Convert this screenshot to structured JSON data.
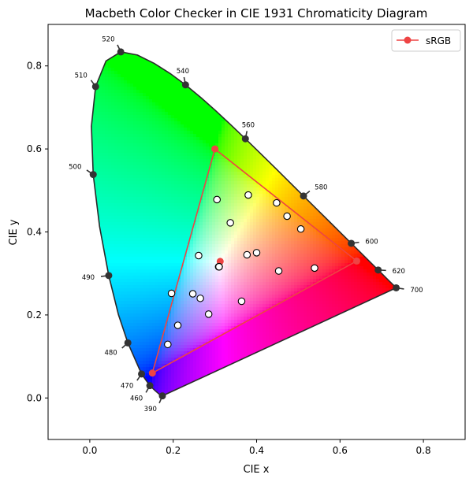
{
  "chart_data": {
    "type": "scatter",
    "title": "Macbeth Color Checker in CIE 1931 Chromaticity Diagram",
    "xlabel": "CIE x",
    "ylabel": "CIE y",
    "xlim": [
      -0.1,
      0.9
    ],
    "ylim": [
      -0.1,
      0.9
    ],
    "x_ticks": [
      "0.0",
      "0.2",
      "0.4",
      "0.6",
      "0.8"
    ],
    "y_ticks": [
      "0.0",
      "0.2",
      "0.4",
      "0.6",
      "0.8"
    ],
    "grid": false,
    "legend": {
      "placement": "top-right",
      "entries": [
        "sRGB"
      ]
    },
    "spectral_locus": [
      [
        0.1741,
        0.005
      ],
      [
        0.1738,
        0.0049
      ],
      [
        0.1733,
        0.0048
      ],
      [
        0.1726,
        0.0048
      ],
      [
        0.1714,
        0.0051
      ],
      [
        0.1689,
        0.0069
      ],
      [
        0.1644,
        0.0109
      ],
      [
        0.1566,
        0.0177
      ],
      [
        0.144,
        0.0297
      ],
      [
        0.1241,
        0.0578
      ],
      [
        0.0913,
        0.1327
      ],
      [
        0.0687,
        0.2007
      ],
      [
        0.0454,
        0.295
      ],
      [
        0.0235,
        0.4127
      ],
      [
        0.0082,
        0.5384
      ],
      [
        0.0039,
        0.6548
      ],
      [
        0.0139,
        0.7502
      ],
      [
        0.0389,
        0.812
      ],
      [
        0.0743,
        0.8338
      ],
      [
        0.1142,
        0.8262
      ],
      [
        0.1547,
        0.8059
      ],
      [
        0.1929,
        0.7816
      ],
      [
        0.2296,
        0.7543
      ],
      [
        0.2658,
        0.7243
      ],
      [
        0.3016,
        0.6923
      ],
      [
        0.3373,
        0.6589
      ],
      [
        0.3731,
        0.6245
      ],
      [
        0.4087,
        0.5896
      ],
      [
        0.4441,
        0.5547
      ],
      [
        0.4788,
        0.5202
      ],
      [
        0.5125,
        0.4866
      ],
      [
        0.5448,
        0.4544
      ],
      [
        0.5752,
        0.4242
      ],
      [
        0.6029,
        0.3965
      ],
      [
        0.627,
        0.3725
      ],
      [
        0.6482,
        0.3514
      ],
      [
        0.6658,
        0.334
      ],
      [
        0.6801,
        0.3197
      ],
      [
        0.6915,
        0.3083
      ],
      [
        0.7006,
        0.2993
      ],
      [
        0.7079,
        0.292
      ],
      [
        0.714,
        0.2859
      ],
      [
        0.719,
        0.2809
      ],
      [
        0.723,
        0.277
      ],
      [
        0.726,
        0.274
      ],
      [
        0.7283,
        0.2717
      ],
      [
        0.73,
        0.27
      ],
      [
        0.7311,
        0.2689
      ],
      [
        0.732,
        0.268
      ],
      [
        0.7327,
        0.2673
      ],
      [
        0.7334,
        0.2666
      ],
      [
        0.734,
        0.266
      ],
      [
        0.7344,
        0.2656
      ],
      [
        0.7346,
        0.2654
      ],
      [
        0.7347,
        0.2653
      ]
    ],
    "wavelength_labels": [
      {
        "label": "390",
        "x": 0.1741,
        "y": 0.005
      },
      {
        "label": "460",
        "x": 0.144,
        "y": 0.0297
      },
      {
        "label": "470",
        "x": 0.1241,
        "y": 0.0578
      },
      {
        "label": "480",
        "x": 0.0913,
        "y": 0.1327
      },
      {
        "label": "490",
        "x": 0.0454,
        "y": 0.295
      },
      {
        "label": "500",
        "x": 0.0082,
        "y": 0.5384
      },
      {
        "label": "510",
        "x": 0.0139,
        "y": 0.7502
      },
      {
        "label": "520",
        "x": 0.0743,
        "y": 0.8338
      },
      {
        "label": "540",
        "x": 0.2296,
        "y": 0.7543
      },
      {
        "label": "560",
        "x": 0.3731,
        "y": 0.6245
      },
      {
        "label": "580",
        "x": 0.5125,
        "y": 0.4866
      },
      {
        "label": "600",
        "x": 0.627,
        "y": 0.3725
      },
      {
        "label": "620",
        "x": 0.6915,
        "y": 0.3083
      },
      {
        "label": "700",
        "x": 0.7347,
        "y": 0.2653
      }
    ],
    "series": [
      {
        "name": "sRGB",
        "color": "#ee4444",
        "x": [
          0.64,
          0.3,
          0.15,
          0.64
        ],
        "y": [
          0.33,
          0.6,
          0.06,
          0.33
        ]
      }
    ],
    "whitepoint": {
      "x": 0.3127,
      "y": 0.329,
      "color": "#ee4444"
    },
    "macbeth_points": {
      "x": [
        0.4,
        0.377,
        0.247,
        0.337,
        0.265,
        0.261,
        0.506,
        0.211,
        0.453,
        0.285,
        0.38,
        0.473,
        0.187,
        0.305,
        0.539,
        0.448,
        0.364,
        0.196,
        0.31,
        0.309,
        0.31,
        0.31,
        0.31,
        0.31
      ],
      "y": [
        0.35,
        0.345,
        0.251,
        0.422,
        0.24,
        0.343,
        0.407,
        0.175,
        0.306,
        0.202,
        0.489,
        0.438,
        0.129,
        0.478,
        0.313,
        0.47,
        0.233,
        0.252,
        0.316,
        0.316,
        0.316,
        0.316,
        0.316,
        0.316
      ]
    }
  }
}
